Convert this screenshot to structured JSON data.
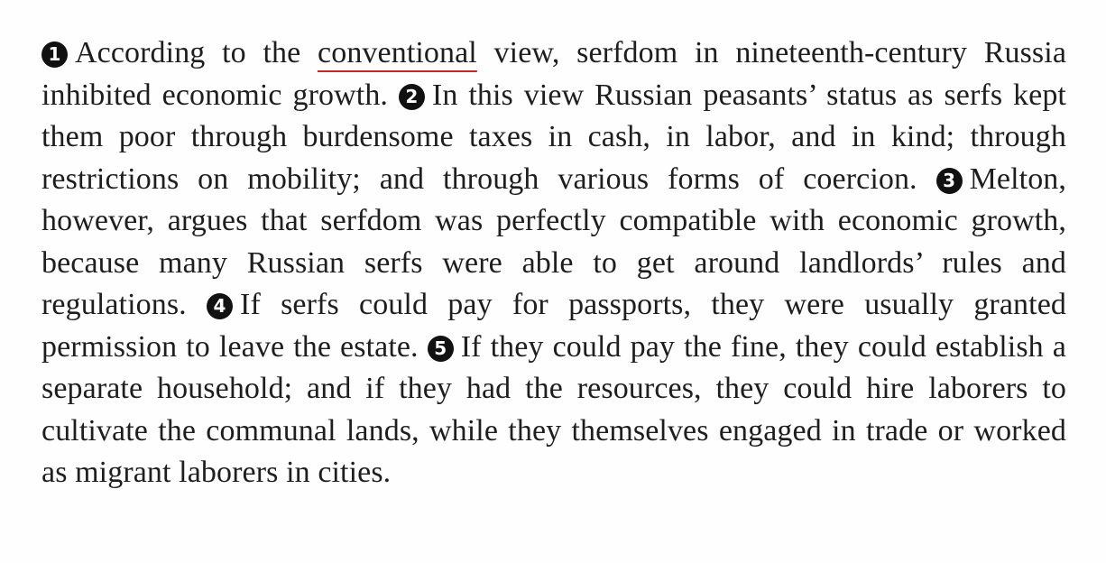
{
  "passage": {
    "sentences": [
      {
        "number": "1",
        "before": "According to the ",
        "highlight": "conventional",
        "after": " view, serfdom in nineteenth-century Russia inhibited economic growth."
      },
      {
        "number": "2",
        "text": "In this view Russian peasants’ status as serfs kept them poor through burdensome taxes in cash, in labor, and in kind; through restrictions on mobility; and through various forms of coercion."
      },
      {
        "number": "3",
        "text": "Melton, however, argues that serfdom was perfectly compatible with economic growth, because many Russian serfs were able to get around landlords’ rules and regulations."
      },
      {
        "number": "4",
        "text": "If serfs could pay for passports, they were usually granted permission to leave the estate."
      },
      {
        "number": "5",
        "text": "If they could pay the fine, they could establish a separate household; and if they had the resources, they could hire laborers to cultivate the communal lands, while they themselves engaged in trade or worked as migrant laborers in cities."
      }
    ]
  },
  "colors": {
    "text": "#1e1e1e",
    "number_badge": "#111111",
    "highlight_underline": "#c62828",
    "background": "#fefefe"
  }
}
